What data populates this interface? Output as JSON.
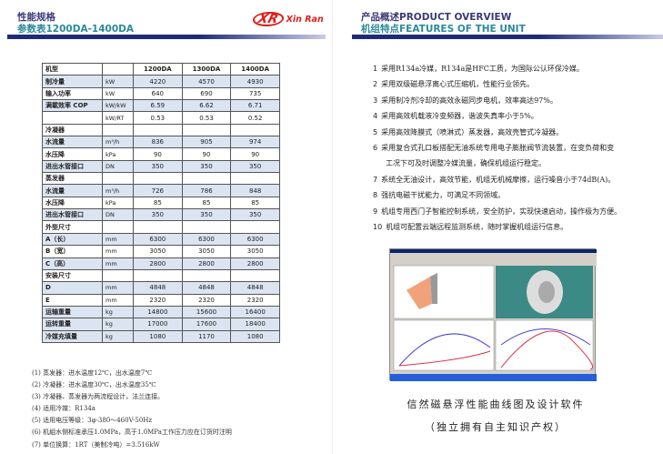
{
  "left": {
    "title1": "性能规格",
    "title2": "参数表1200DA-1400DA",
    "logo_mark": "XR",
    "logo_text": "Xin Ran",
    "header": [
      "机型",
      "",
      "1200DA",
      "1300DA",
      "1400DA"
    ],
    "rows": [
      {
        "label": "制冷量",
        "unit": "kW",
        "values": [
          "4220",
          "4570",
          "4930"
        ],
        "shaded": true
      },
      {
        "label": "输入功率",
        "unit": "kW",
        "values": [
          "640",
          "690",
          "735"
        ],
        "shaded": false
      },
      {
        "label": "满載效率 COP",
        "unit": "kW/kW",
        "values": [
          "6.59",
          "6.62",
          "6.71"
        ],
        "shaded": true
      },
      {
        "label": "",
        "unit": "kW/RT",
        "values": [
          "0.53",
          "0.53",
          "0.52"
        ],
        "shaded": false
      },
      {
        "label": "冷凝器",
        "unit": "",
        "values": [
          "",
          "",
          ""
        ],
        "shaded": false
      },
      {
        "label": "水流量",
        "unit": "m³/h",
        "values": [
          "836",
          "905",
          "974"
        ],
        "shaded": true
      },
      {
        "label": "水压降",
        "unit": "kPa",
        "values": [
          "90",
          "90",
          "90"
        ],
        "shaded": false
      },
      {
        "label": "进出水管接口",
        "unit": "DN",
        "values": [
          "350",
          "350",
          "350"
        ],
        "shaded": true
      },
      {
        "label": "蒸发器",
        "unit": "",
        "values": [
          "",
          "",
          ""
        ],
        "shaded": false
      },
      {
        "label": "水流量",
        "unit": "m³/h",
        "values": [
          "726",
          "786",
          "848"
        ],
        "shaded": true
      },
      {
        "label": "水压降",
        "unit": "kPa",
        "values": [
          "85",
          "85",
          "85"
        ],
        "shaded": false
      },
      {
        "label": "进出水管接口",
        "unit": "DN",
        "values": [
          "350",
          "350",
          "350"
        ],
        "shaded": true
      },
      {
        "label": "外型尺寸",
        "unit": "",
        "values": [
          "",
          "",
          ""
        ],
        "shaded": false
      },
      {
        "label": "A（长）",
        "unit": "mm",
        "values": [
          "6300",
          "6300",
          "6300"
        ],
        "shaded": true
      },
      {
        "label": "B（宽）",
        "unit": "mm",
        "values": [
          "3050",
          "3050",
          "3050"
        ],
        "shaded": false
      },
      {
        "label": "C（高）",
        "unit": "mm",
        "values": [
          "2800",
          "2800",
          "2800"
        ],
        "shaded": true
      },
      {
        "label": "安装尺寸",
        "unit": "",
        "values": [
          "",
          "",
          ""
        ],
        "shaded": false
      },
      {
        "label": "D",
        "unit": "mm",
        "values": [
          "4848",
          "4848",
          "4848"
        ],
        "shaded": true
      },
      {
        "label": "E",
        "unit": "mm",
        "values": [
          "2320",
          "2320",
          "2320"
        ],
        "shaded": false
      },
      {
        "label": "运输重量",
        "unit": "kg",
        "values": [
          "14800",
          "15600",
          "16400"
        ],
        "shaded": true
      },
      {
        "label": "运转重量",
        "unit": "kg",
        "values": [
          "17000",
          "17600",
          "18400"
        ],
        "shaded": true
      },
      {
        "label": "冷媒充填量",
        "unit": "kg",
        "values": [
          "1080",
          "1170",
          "1080"
        ],
        "shaded": true
      }
    ],
    "notes": [
      "(1) 蒸发器：进水温度12℃，出水温度7℃",
      "(2) 冷凝器：进水温度30℃，出水温度35℃",
      "(3) 冷凝器、蒸发器为两流程设计，法兰连接。",
      "(4) 适用冷媒：R134a",
      "(5) 适用电压等级：3φ-380～460V-50Hz",
      "(6) 机組水侧标准承压1.0MPa，高于1.0MPa工作压力应在订货时注明",
      "(7) 单位换算：1RT（美制冷吨）=3.516kW"
    ]
  },
  "right": {
    "title1": "产品概述PRODUCT OVERVIEW",
    "title2": "机组特点FEATURES OF THE UNIT",
    "features": [
      {
        "n": "1",
        "t": "采用R134a冷媒，R134a是HFC工质，为国际公认环保冷媒。"
      },
      {
        "n": "2",
        "t": "采用双级磁悬浮离心式压缩机，性能行业领先。"
      },
      {
        "n": "3",
        "t": "采用制冷剂冷却的高效永磁同步电机，效率高达97%。"
      },
      {
        "n": "4",
        "t": "采用高效机载液冷变频器，谐波失真率小于5%。"
      },
      {
        "n": "5",
        "t": "采用高效降膜式（喷淋式）蒸发器，高效壳管式冷凝器。"
      },
      {
        "n": "6",
        "t": "采用复合式孔口板搭配无油系统专用电子膨胀阀节流装置，在变负荷和变"
      },
      {
        "n": "",
        "t": "工况下可及时调整冷媒流量，确保机组运行稳定。"
      },
      {
        "n": "7",
        "t": "系统全无油设计，高效节能，机组无机械摩擦，运行噪音小于74dB(A)。"
      },
      {
        "n": "8",
        "t": "强抗电磁干扰能力，可满足不同领域。"
      },
      {
        "n": "9",
        "t": "机组专用西门子智能控制系统，安全防护，实现快速启动，操作极为方便。"
      },
      {
        "n": "10",
        "t": "机组可配置云端远程监测系统，随时掌握机组运行信息。"
      }
    ],
    "caption1": "信然磁悬浮性能曲线图及设计软件",
    "caption2": "（独立拥有自主知识产权）"
  },
  "colors": {
    "brand_red": "#e0201c",
    "title_navy": "#3a3a7a",
    "title_teal": "#2a8a9a",
    "row_shade": "#dbe5f1"
  }
}
